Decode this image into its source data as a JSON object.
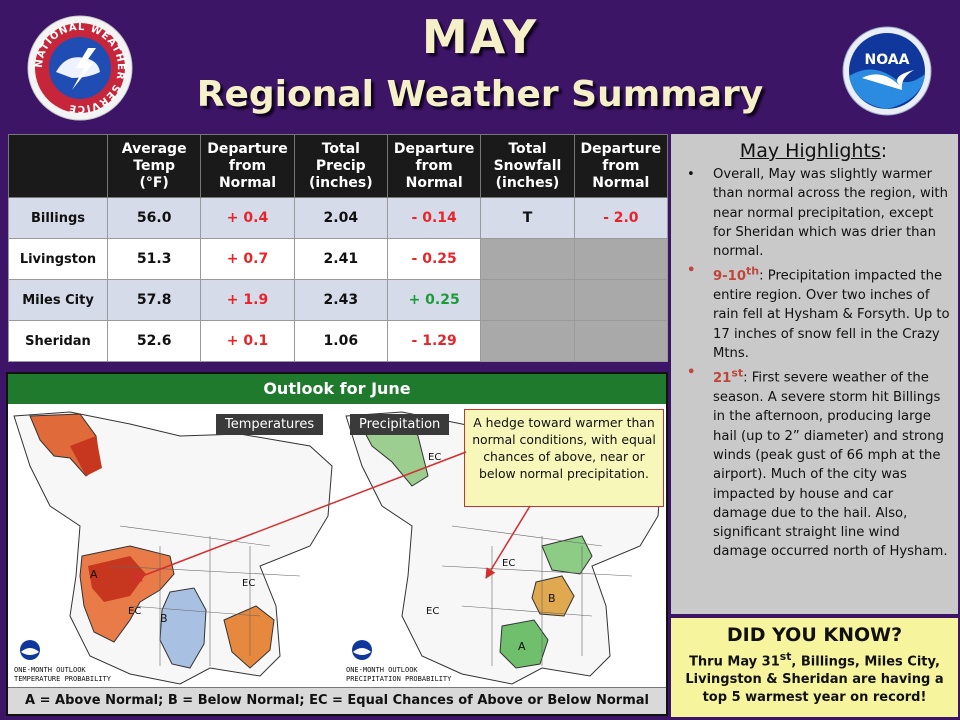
{
  "header": {
    "title_line1": "MAY",
    "title_line2": "Regional Weather Summary",
    "nws_logo_text": "NATIONAL WEATHER SERVICE",
    "noaa_logo_text": "NOAA"
  },
  "table": {
    "headers": [
      "",
      "Average Temp (°F)",
      "Departure from Normal",
      "Total Precip (inches)",
      "Departure from Normal",
      "Total Snowfall (inches)",
      "Departure from Normal"
    ],
    "rows": [
      {
        "station": "Billings",
        "avg_temp": "56.0",
        "temp_dep": "+ 0.4",
        "precip": "2.04",
        "precip_dep": "- 0.14",
        "snow": "T",
        "snow_dep": "- 2.0"
      },
      {
        "station": "Livingston",
        "avg_temp": "51.3",
        "temp_dep": "+ 0.7",
        "precip": "2.41",
        "precip_dep": "- 0.25",
        "snow": "",
        "snow_dep": ""
      },
      {
        "station": "Miles City",
        "avg_temp": "57.8",
        "temp_dep": "+ 1.9",
        "precip": "2.43",
        "precip_dep": "+ 0.25",
        "snow": "",
        "snow_dep": ""
      },
      {
        "station": "Sheridan",
        "avg_temp": "52.6",
        "temp_dep": "+ 0.1",
        "precip": "1.06",
        "precip_dep": "- 1.29",
        "snow": "",
        "snow_dep": ""
      }
    ]
  },
  "highlights": {
    "title": "May Highlights",
    "title_suffix": ":",
    "items": [
      {
        "day": "",
        "sup": "",
        "text": "Overall, May was slightly warmer than normal across the region, with near normal precipitation, except for Sheridan which was drier than normal."
      },
      {
        "day": "9-10",
        "sup": "th",
        "text": ": Precipitation impacted the entire region. Over two inches of rain fell at Hysham & Forsyth. Up to 17 inches of snow fell in the Crazy Mtns."
      },
      {
        "day": "21",
        "sup": "st",
        "text": ": First severe weather of the season. A severe storm hit Billings in the afternoon, producing large hail (up to 2” diameter) and strong winds (peak gust of 66 mph at the airport). Much of the city was impacted by house and car damage due to the hail. Also, significant straight line wind damage occurred north of Hysham."
      }
    ]
  },
  "did_you_know": {
    "title": "DID YOU KNOW?",
    "text_part1": "Thru May 31",
    "text_sup": "st",
    "text_part2": ", Billings, Miles City, Livingston & Sheridan are having a top 5 warmest year on record!"
  },
  "outlook": {
    "title": "Outlook for June",
    "temp_label": "Temperatures",
    "precip_label": "Precipitation",
    "callout": "A hedge toward warmer than normal conditions, with equal chances of above, near or below normal precipitation.",
    "legend": "A = Above Normal;  B = Below Normal;  EC = Equal Chances of Above or Below Normal",
    "temp_map_caption1": "ONE-MONTH OUTLOOK",
    "temp_map_caption2": "TEMPERATURE PROBABILITY",
    "precip_map_caption1": "ONE-MONTH OUTLOOK",
    "precip_map_caption2": "PRECIPITATION PROBABILITY",
    "map_marks": {
      "above": "A",
      "below": "B",
      "equal": "EC"
    }
  },
  "colors": {
    "background": "#3d1566",
    "warm": "#d9532b",
    "cool": "#9fb8dd",
    "wet": "#7cc47a",
    "dry": "#d9a35a",
    "departure_negative": "#e8242a",
    "departure_positive": "#1d9b3a"
  },
  "icons": [
    "nws-logo-icon",
    "noaa-logo-icon"
  ]
}
